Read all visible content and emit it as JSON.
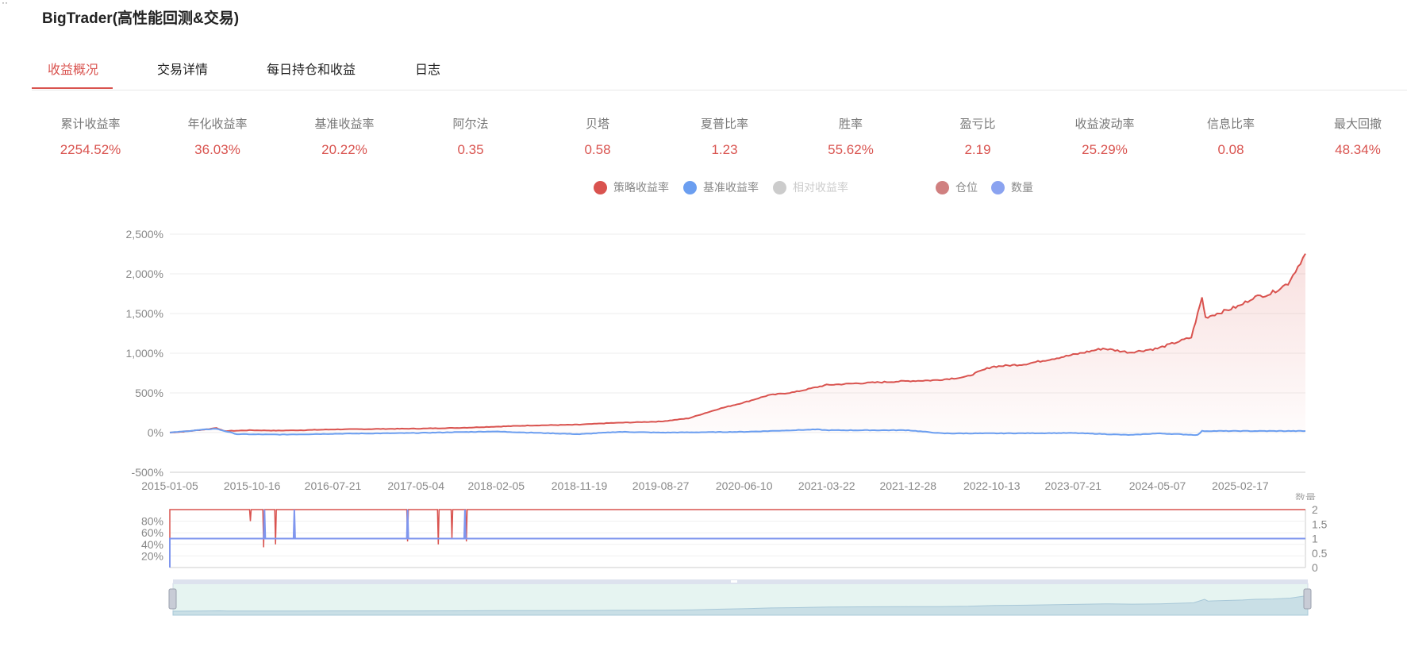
{
  "app": {
    "title": "BigTrader(高性能回测&交易)",
    "corner": "··"
  },
  "tabs": [
    {
      "label": "收益概况",
      "active": true
    },
    {
      "label": "交易详情",
      "active": false
    },
    {
      "label": "每日持仓和收益",
      "active": false
    },
    {
      "label": "日志",
      "active": false
    }
  ],
  "metrics": [
    {
      "label": "累计收益率",
      "value": "2254.52%"
    },
    {
      "label": "年化收益率",
      "value": "36.03%"
    },
    {
      "label": "基准收益率",
      "value": "20.22%"
    },
    {
      "label": "阿尔法",
      "value": "0.35"
    },
    {
      "label": "贝塔",
      "value": "0.58"
    },
    {
      "label": "夏普比率",
      "value": "1.23"
    },
    {
      "label": "胜率",
      "value": "55.62%"
    },
    {
      "label": "盈亏比",
      "value": "2.19"
    },
    {
      "label": "收益波动率",
      "value": "25.29%"
    },
    {
      "label": "信息比率",
      "value": "0.08"
    },
    {
      "label": "最大回撤",
      "value": "48.34%"
    }
  ],
  "legend": [
    {
      "label": "策略收益率",
      "color": "#d9534f",
      "enabled": true
    },
    {
      "label": "基准收益率",
      "color": "#6b9ef0",
      "enabled": true
    },
    {
      "label": "相对收益率",
      "color": "#cccccc",
      "enabled": false
    },
    {
      "label": "仓位",
      "color": "#d08080",
      "enabled": true
    },
    {
      "label": "数量",
      "color": "#8ba3f0",
      "enabled": true
    }
  ],
  "chart_data": {
    "type": "line",
    "x_ticks": [
      "2015-01-05",
      "2015-10-16",
      "2016-07-21",
      "2017-05-04",
      "2018-02-05",
      "2018-11-19",
      "2019-08-27",
      "2020-06-10",
      "2021-03-22",
      "2021-12-28",
      "2022-10-13",
      "2023-07-21",
      "2024-05-07",
      "2025-02-17"
    ],
    "x_range": [
      "2015-01-05",
      "2025-09-30"
    ],
    "y_ticks": [
      "2,500%",
      "2,000%",
      "1,500%",
      "1,000%",
      "500%",
      "0%",
      "-500%"
    ],
    "ylim": [
      -500,
      2500
    ],
    "series": [
      {
        "name": "策略收益率",
        "color": "#d9534f",
        "area": true,
        "points": [
          [
            "2015-01-05",
            0
          ],
          [
            "2015-03-01",
            15
          ],
          [
            "2015-05-20",
            45
          ],
          [
            "2015-06-15",
            60
          ],
          [
            "2015-07-10",
            20
          ],
          [
            "2015-09-01",
            25
          ],
          [
            "2015-10-16",
            30
          ],
          [
            "2016-01-15",
            25
          ],
          [
            "2016-04-01",
            30
          ],
          [
            "2016-07-21",
            40
          ],
          [
            "2016-12-01",
            45
          ],
          [
            "2017-05-04",
            50
          ],
          [
            "2017-10-01",
            60
          ],
          [
            "2018-02-05",
            75
          ],
          [
            "2018-06-01",
            90
          ],
          [
            "2018-11-19",
            100
          ],
          [
            "2019-03-01",
            120
          ],
          [
            "2019-08-27",
            140
          ],
          [
            "2019-12-01",
            180
          ],
          [
            "2020-03-15",
            300
          ],
          [
            "2020-06-10",
            380
          ],
          [
            "2020-09-01",
            470
          ],
          [
            "2020-12-01",
            510
          ],
          [
            "2021-03-22",
            600
          ],
          [
            "2021-07-01",
            620
          ],
          [
            "2021-12-28",
            650
          ],
          [
            "2022-04-01",
            660
          ],
          [
            "2022-07-15",
            700
          ],
          [
            "2022-10-13",
            830
          ],
          [
            "2023-02-01",
            860
          ],
          [
            "2023-07-21",
            980
          ],
          [
            "2023-11-01",
            1060
          ],
          [
            "2024-02-01",
            1010
          ],
          [
            "2024-05-07",
            1060
          ],
          [
            "2024-09-01",
            1200
          ],
          [
            "2024-10-08",
            1700
          ],
          [
            "2024-10-20",
            1450
          ],
          [
            "2025-02-17",
            1600
          ],
          [
            "2025-04-01",
            1700
          ],
          [
            "2025-06-01",
            1750
          ],
          [
            "2025-08-01",
            1880
          ],
          [
            "2025-09-30",
            2254
          ]
        ]
      },
      {
        "name": "基准收益率",
        "color": "#6b9ef0",
        "area": false,
        "points": [
          [
            "2015-01-05",
            0
          ],
          [
            "2015-06-12",
            50
          ],
          [
            "2015-08-25",
            -20
          ],
          [
            "2016-01-28",
            -25
          ],
          [
            "2016-07-21",
            -15
          ],
          [
            "2017-05-04",
            -5
          ],
          [
            "2018-01-24",
            15
          ],
          [
            "2018-11-19",
            -20
          ],
          [
            "2019-04-08",
            10
          ],
          [
            "2019-08-27",
            0
          ],
          [
            "2020-06-10",
            10
          ],
          [
            "2021-02-18",
            40
          ],
          [
            "2021-03-22",
            30
          ],
          [
            "2021-12-28",
            30
          ],
          [
            "2022-04-26",
            -10
          ],
          [
            "2022-10-13",
            -10
          ],
          [
            "2023-07-21",
            -5
          ],
          [
            "2024-02-05",
            -30
          ],
          [
            "2024-05-07",
            -10
          ],
          [
            "2024-09-23",
            -30
          ],
          [
            "2024-10-08",
            20
          ],
          [
            "2025-09-30",
            20
          ]
        ]
      }
    ],
    "position_chart": {
      "left_ticks": [
        "80%",
        "60%",
        "40%",
        "20%"
      ],
      "right_ticks": [
        "2",
        "1.5",
        "1",
        "0.5",
        "0"
      ],
      "right_axis_label": "数量",
      "position_base": 1.0,
      "position_dips": [
        [
          "2015-10-10",
          0.8
        ],
        [
          "2015-11-25",
          0.35
        ],
        [
          "2016-01-05",
          0.4
        ],
        [
          "2017-04-05",
          0.45
        ],
        [
          "2017-07-20",
          0.4
        ],
        [
          "2017-09-05",
          0.5
        ],
        [
          "2017-10-25",
          0.45
        ]
      ],
      "quantity_base": 1,
      "quantity_spikes": [
        [
          "2015-11-28",
          2
        ],
        [
          "2016-03-10",
          2
        ],
        [
          "2017-04-05",
          2
        ],
        [
          "2017-10-20",
          2
        ]
      ]
    }
  }
}
